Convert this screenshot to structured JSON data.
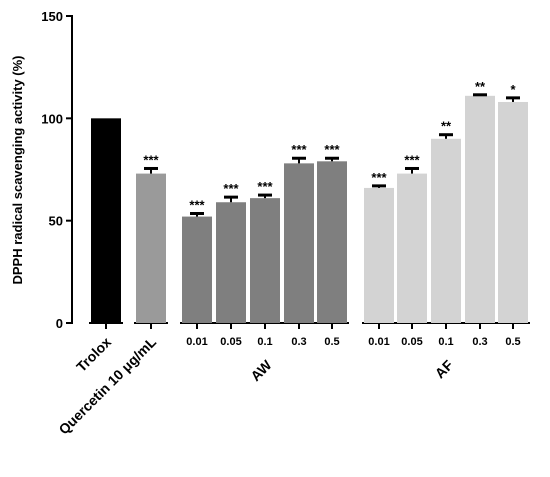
{
  "chart_data": {
    "type": "bar",
    "title": "",
    "xlabel": "",
    "ylabel": "DPPH radical scavenging activity (%)",
    "ylim": [
      0,
      150
    ],
    "yticks": [
      0,
      50,
      100,
      150
    ],
    "grid": false,
    "legend": "none",
    "categories": [
      "Trolox",
      "Quercetin 10 μg/mL",
      "0.01",
      "0.05",
      "0.1",
      "0.3",
      "0.5",
      "0.01",
      "0.05",
      "0.1",
      "0.3",
      "0.5"
    ],
    "groups": [
      {
        "label": "AW",
        "members": [
          2,
          3,
          4,
          5,
          6
        ]
      },
      {
        "label": "AF",
        "members": [
          7,
          8,
          9,
          10,
          11
        ]
      }
    ],
    "values": [
      100,
      73,
      52,
      59,
      61,
      78,
      79,
      66,
      73,
      90,
      111,
      108
    ],
    "errors": [
      0,
      2.5,
      1.5,
      2.5,
      1.5,
      2.5,
      1.5,
      1,
      2.5,
      2,
      0.5,
      2
    ],
    "significance": [
      "",
      "***",
      "***",
      "***",
      "***",
      "***",
      "***",
      "***",
      "***",
      "**",
      "**",
      "*"
    ],
    "colors": [
      "#000000",
      "#9a9a9a",
      "#7f7f7f",
      "#7f7f7f",
      "#7f7f7f",
      "#7f7f7f",
      "#7f7f7f",
      "#d3d3d3",
      "#d3d3d3",
      "#d3d3d3",
      "#d3d3d3",
      "#d3d3d3"
    ]
  }
}
